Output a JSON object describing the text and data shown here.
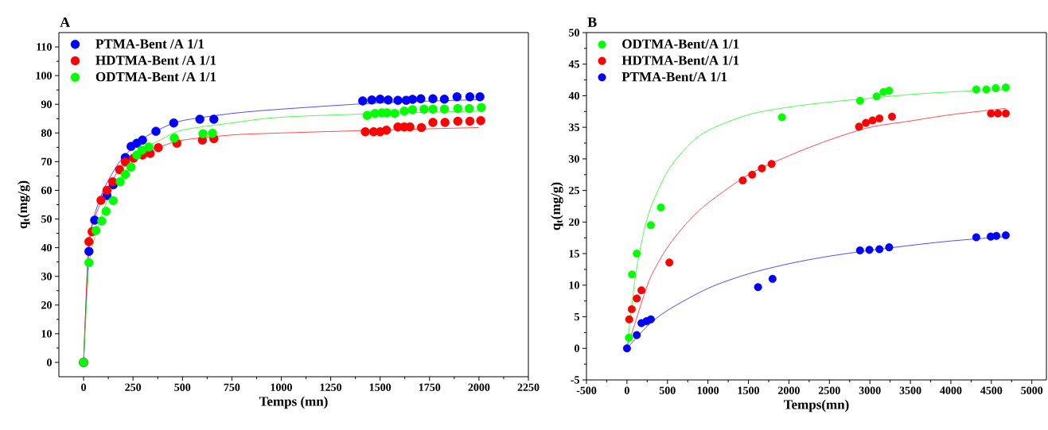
{
  "chart_data": [
    {
      "type": "scatter",
      "title": "A",
      "xlabel": "Temps (mn)",
      "ylabel": "q$_{t}$(mg/g)",
      "xlim": [
        -125,
        2250
      ],
      "ylim": [
        -5,
        115
      ],
      "xticks": [
        0,
        250,
        500,
        750,
        1000,
        1250,
        1500,
        1750,
        2000,
        2250
      ],
      "yticks": [
        0,
        10,
        20,
        30,
        40,
        50,
        60,
        70,
        80,
        90,
        100,
        110
      ],
      "legend": "top left",
      "series": [
        {
          "name": "PTMA-Bent /A 1/1",
          "color": "#0000ff",
          "marker": "circle",
          "x": [
            0,
            27,
            56,
            118,
            150,
            211,
            240,
            269,
            298,
            366,
            456,
            588,
            659,
            1412,
            1458,
            1500,
            1541,
            1590,
            1632,
            1664,
            1706,
            1767,
            1825,
            1889,
            1954,
            2005
          ],
          "values": [
            0,
            38.7,
            49.6,
            58.2,
            61.9,
            71.4,
            75.3,
            76.4,
            77.5,
            80.6,
            83.5,
            84.8,
            84.8,
            91.2,
            91.5,
            91.8,
            91.5,
            91.4,
            91.4,
            91.7,
            91.9,
            91.9,
            91.8,
            92.6,
            92.6,
            92.6
          ]
        },
        {
          "name": "HDTMA-Bent /A 1/1",
          "color": "#ff0000",
          "marker": "circle",
          "x": [
            0,
            27,
            43,
            88,
            118,
            147,
            182,
            211,
            253,
            298,
            337,
            378,
            472,
            601,
            659,
            1425,
            1467,
            1500,
            1532,
            1590,
            1622,
            1651,
            1709,
            1767,
            1828,
            1893,
            1954,
            2009
          ],
          "values": [
            0,
            42.1,
            45.6,
            56.5,
            60.0,
            63.0,
            67.2,
            69.9,
            71.2,
            72.3,
            72.9,
            74.9,
            76.4,
            77.5,
            78.0,
            80.4,
            80.4,
            80.4,
            81.0,
            82.1,
            82.1,
            82.1,
            81.9,
            83.7,
            83.7,
            84.1,
            84.1,
            84.3
          ]
        },
        {
          "name": "ODTMA-Bent /A 1/1",
          "color": "#00ff00",
          "marker": "circle",
          "x": [
            0,
            27,
            63,
            92,
            114,
            150,
            185,
            211,
            240,
            269,
            295,
            330,
            459,
            604,
            652,
            1435,
            1474,
            1509,
            1535,
            1574,
            1622,
            1664,
            1722,
            1767,
            1825,
            1893,
            1951,
            2012
          ],
          "values": [
            0,
            34.8,
            46.0,
            49.3,
            52.7,
            56.4,
            63.0,
            65.5,
            68.1,
            72.3,
            74.0,
            75.1,
            78.2,
            79.7,
            79.9,
            86.1,
            86.8,
            87.0,
            87.0,
            86.8,
            87.6,
            88.1,
            88.3,
            88.3,
            88.3,
            88.5,
            88.5,
            88.9
          ]
        },
        {
          "type": "line",
          "color": "#0000ff",
          "marker": "none",
          "x": [
            0,
            25,
            50,
            100,
            150,
            200,
            300,
            400,
            500,
            750,
            1000,
            1500,
            2000
          ],
          "values": [
            0,
            38,
            50,
            60,
            66.5,
            71.5,
            78,
            81.8,
            84.3,
            86.8,
            88.3,
            90.5,
            91.6
          ]
        },
        {
          "type": "line",
          "color": "#ff0000",
          "marker": "none",
          "x": [
            0,
            25,
            50,
            100,
            150,
            200,
            300,
            400,
            500,
            750,
            1000,
            1500,
            2000
          ],
          "values": [
            0,
            41,
            49,
            58,
            64,
            69,
            73,
            75.5,
            77.5,
            79.3,
            80,
            81,
            81.9
          ]
        },
        {
          "type": "line",
          "color": "#00ff00",
          "marker": "none",
          "x": [
            0,
            25,
            50,
            100,
            150,
            200,
            300,
            400,
            500,
            750,
            1000,
            1500,
            2000
          ],
          "values": [
            0,
            32,
            42,
            53,
            61,
            66,
            74,
            78,
            81,
            83.5,
            85.5,
            86.8,
            87.6
          ]
        }
      ]
    },
    {
      "type": "scatter",
      "title": "B",
      "xlabel": "Temps(mn)",
      "ylabel": "q$_{t}$(mg/g)",
      "xlim": [
        -500,
        5180
      ],
      "ylim": [
        -5,
        50
      ],
      "xticks": [
        -500,
        0,
        500,
        1000,
        1500,
        2000,
        2500,
        3000,
        3500,
        4000,
        4500,
        5000
      ],
      "yticks": [
        -5,
        0,
        5,
        10,
        15,
        20,
        25,
        30,
        35,
        40,
        45,
        50
      ],
      "legend": "top left",
      "series": [
        {
          "name": "ODTMA-Bent/A 1/1",
          "color": "#00ff00",
          "marker": "circle",
          "x": [
            24,
            63,
            121,
            295,
            419,
            1914,
            2878,
            3083,
            3168,
            3238,
            4314,
            4438,
            4554,
            4678
          ],
          "values": [
            1.7,
            11.7,
            15.0,
            19.5,
            22.3,
            36.6,
            39.2,
            39.9,
            40.6,
            40.8,
            41.0,
            41.0,
            41.2,
            41.3
          ]
        },
        {
          "name": "HDTMA-Bent/A 1/1",
          "color": "#ff0000",
          "marker": "circle",
          "x": [
            28,
            59,
            121,
            179,
            524,
            1430,
            1546,
            1666,
            1786,
            2866,
            2951,
            3033,
            3118,
            3273,
            4496,
            4581,
            4678
          ],
          "values": [
            4.6,
            6.2,
            7.9,
            9.2,
            13.6,
            26.6,
            27.5,
            28.5,
            29.2,
            35.1,
            35.7,
            36.1,
            36.4,
            36.7,
            37.2,
            37.2,
            37.2
          ]
        },
        {
          "name": "PTMA-Bent/A 1/1",
          "color": "#0000ff",
          "marker": "circle",
          "x": [
            0,
            121,
            179,
            241,
            295,
            1619,
            1798,
            2878,
            2994,
            3118,
            3238,
            4314,
            4492,
            4562,
            4678
          ],
          "values": [
            0,
            2.1,
            4.0,
            4.3,
            4.6,
            9.7,
            11.0,
            15.5,
            15.6,
            15.7,
            16.0,
            17.6,
            17.7,
            17.8,
            17.9
          ]
        },
        {
          "type": "line",
          "color": "#00ff00",
          "marker": "none",
          "x": [
            0,
            100,
            200,
            300,
            500,
            750,
            1000,
            1500,
            2000,
            2500,
            3000,
            3500,
            4000,
            4680
          ],
          "values": [
            0,
            11,
            18,
            22.5,
            28,
            32,
            34.5,
            37,
            38.2,
            39,
            39.6,
            40.2,
            40.6,
            41
          ]
        },
        {
          "type": "line",
          "color": "#ff0000",
          "marker": "none",
          "x": [
            0,
            100,
            200,
            300,
            500,
            750,
            1000,
            1500,
            2000,
            2500,
            3000,
            3500,
            4000,
            4680
          ],
          "values": [
            0,
            4,
            8,
            11.5,
            16,
            20,
            23,
            27.5,
            30.5,
            33,
            35,
            36,
            37,
            38
          ]
        },
        {
          "type": "line",
          "color": "#0000ff",
          "marker": "none",
          "x": [
            0,
            250,
            500,
            1000,
            1500,
            2000,
            2500,
            3000,
            3500,
            4000,
            4680
          ],
          "values": [
            0,
            3.5,
            6,
            9.5,
            11.8,
            13.4,
            14.6,
            15.5,
            16.3,
            17,
            17.7
          ]
        }
      ]
    }
  ]
}
